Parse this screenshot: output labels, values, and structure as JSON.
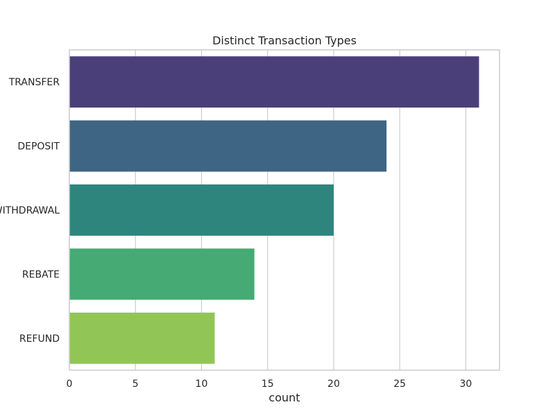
{
  "chart_data": {
    "type": "bar",
    "orientation": "horizontal",
    "title": "Distinct Transaction Types",
    "xlabel": "count",
    "ylabel": "",
    "categories": [
      "TRANSFER",
      "DEPOSIT",
      "WITHDRAWAL",
      "REBATE",
      "REFUND"
    ],
    "values": [
      31,
      24,
      20,
      14,
      11
    ],
    "colors": [
      "#4b3f7a",
      "#3e6584",
      "#2e857e",
      "#45aa74",
      "#91c656"
    ],
    "xlim": [
      0,
      32.55
    ],
    "xticks": [
      0,
      5,
      10,
      15,
      20,
      25,
      30
    ],
    "grid": true
  }
}
